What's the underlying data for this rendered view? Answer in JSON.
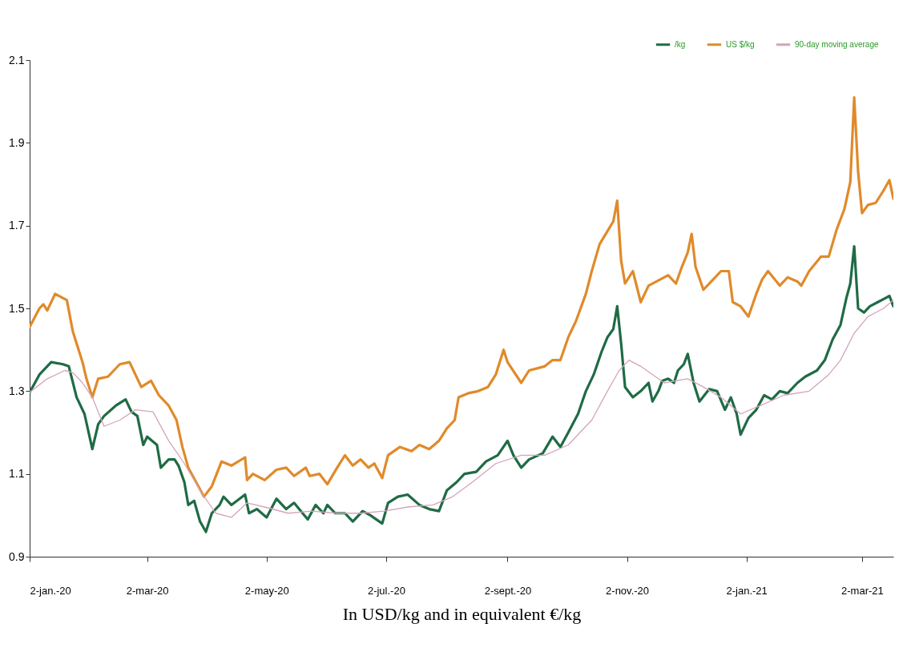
{
  "chart_data": {
    "type": "line",
    "xlabel": "In USD/kg and in equivalent €/kg",
    "xlim": [
      "2020-01-02",
      "2021-03-18"
    ],
    "xticks": [
      {
        "value": "2020-01-02",
        "label": "2-jan.-20"
      },
      {
        "value": "2020-03-02",
        "label": "2-mar-20"
      },
      {
        "value": "2020-05-02",
        "label": "2-may-20"
      },
      {
        "value": "2020-07-02",
        "label": "2-jul.-20"
      },
      {
        "value": "2020-09-02",
        "label": "2-sept.-20"
      },
      {
        "value": "2020-11-02",
        "label": "2-nov.-20"
      },
      {
        "value": "2021-01-02",
        "label": "2-jan.-21"
      },
      {
        "value": "2021-03-02",
        "label": "2-mar-21"
      }
    ],
    "ylim": [
      0.9,
      2.1
    ],
    "yticks": [
      0.9,
      1.1,
      1.3,
      1.5,
      1.7,
      1.9,
      2.1
    ],
    "grid": false,
    "legend": "top right",
    "marker": "none",
    "line_style": "solid",
    "series": [
      {
        "name": "/kg",
        "color": "#1f6b45",
        "x": [
          "2020-01-02",
          "2020-01-07",
          "2020-01-13",
          "2020-01-19",
          "2020-01-22",
          "2020-01-26",
          "2020-01-30",
          "2020-02-03",
          "2020-02-06",
          "2020-02-09",
          "2020-02-15",
          "2020-02-20",
          "2020-02-23",
          "2020-02-26",
          "2020-02-29",
          "2020-03-02",
          "2020-03-07",
          "2020-03-09",
          "2020-03-13",
          "2020-03-16",
          "2020-03-18",
          "2020-03-21",
          "2020-03-23",
          "2020-03-26",
          "2020-03-29",
          "2020-04-01",
          "2020-04-04",
          "2020-04-08",
          "2020-04-10",
          "2020-04-14",
          "2020-04-21",
          "2020-04-23",
          "2020-04-27",
          "2020-05-02",
          "2020-05-07",
          "2020-05-12",
          "2020-05-16",
          "2020-05-23",
          "2020-05-27",
          "2020-05-31",
          "2020-06-02",
          "2020-06-06",
          "2020-06-11",
          "2020-06-15",
          "2020-06-20",
          "2020-06-24",
          "2020-06-30",
          "2020-07-03",
          "2020-07-08",
          "2020-07-13",
          "2020-07-19",
          "2020-07-24",
          "2020-07-29",
          "2020-08-02",
          "2020-08-07",
          "2020-08-11",
          "2020-08-17",
          "2020-08-22",
          "2020-08-28",
          "2020-09-02",
          "2020-09-05",
          "2020-09-09",
          "2020-09-13",
          "2020-09-20",
          "2020-09-25",
          "2020-09-29",
          "2020-10-03",
          "2020-10-08",
          "2020-10-12",
          "2020-10-16",
          "2020-10-20",
          "2020-10-23",
          "2020-10-26",
          "2020-10-28",
          "2020-10-30",
          "2020-11-01",
          "2020-11-05",
          "2020-11-09",
          "2020-11-13",
          "2020-11-15",
          "2020-11-18",
          "2020-11-20",
          "2020-11-23",
          "2020-11-26",
          "2020-11-28",
          "2020-12-01",
          "2020-12-03",
          "2020-12-06",
          "2020-12-09",
          "2020-12-14",
          "2020-12-18",
          "2020-12-22",
          "2020-12-25",
          "2020-12-28",
          "2020-12-30",
          "2021-01-03",
          "2021-01-07",
          "2021-01-11",
          "2021-01-15",
          "2021-01-19",
          "2021-01-23",
          "2021-01-28",
          "2021-02-01",
          "2021-02-07",
          "2021-02-11",
          "2021-02-15",
          "2021-02-19",
          "2021-02-22",
          "2021-02-24",
          "2021-02-26",
          "2021-02-28",
          "2021-03-03",
          "2021-03-06",
          "2021-03-10",
          "2021-03-14",
          "2021-03-16",
          "2021-03-18"
        ],
        "values": [
          1.297,
          1.34,
          1.37,
          1.365,
          1.36,
          1.285,
          1.245,
          1.16,
          1.22,
          1.24,
          1.265,
          1.28,
          1.25,
          1.24,
          1.17,
          1.19,
          1.17,
          1.115,
          1.135,
          1.135,
          1.12,
          1.08,
          1.025,
          1.035,
          0.985,
          0.96,
          1.005,
          1.025,
          1.045,
          1.025,
          1.05,
          1.005,
          1.015,
          0.995,
          1.04,
          1.015,
          1.03,
          0.99,
          1.025,
          1.005,
          1.025,
          1.005,
          1.005,
          0.985,
          1.01,
          1.0,
          0.98,
          1.03,
          1.045,
          1.05,
          1.025,
          1.015,
          1.01,
          1.06,
          1.08,
          1.1,
          1.105,
          1.13,
          1.145,
          1.18,
          1.145,
          1.115,
          1.135,
          1.15,
          1.19,
          1.165,
          1.2,
          1.245,
          1.3,
          1.34,
          1.395,
          1.43,
          1.45,
          1.505,
          1.415,
          1.31,
          1.285,
          1.3,
          1.32,
          1.275,
          1.3,
          1.325,
          1.33,
          1.32,
          1.35,
          1.365,
          1.39,
          1.32,
          1.275,
          1.305,
          1.3,
          1.255,
          1.285,
          1.245,
          1.195,
          1.235,
          1.255,
          1.29,
          1.28,
          1.3,
          1.295,
          1.32,
          1.335,
          1.35,
          1.375,
          1.425,
          1.46,
          1.525,
          1.56,
          1.65,
          1.5,
          1.49,
          1.505,
          1.515,
          1.525,
          1.53,
          1.505
        ]
      },
      {
        "name": "US $/kg",
        "color": "#e08a2a",
        "x": [
          "2020-01-02",
          "2020-01-07",
          "2020-01-09",
          "2020-01-11",
          "2020-01-15",
          "2020-01-19",
          "2020-01-21",
          "2020-01-24",
          "2020-01-29",
          "2020-01-31",
          "2020-02-03",
          "2020-02-06",
          "2020-02-11",
          "2020-02-17",
          "2020-02-22",
          "2020-02-25",
          "2020-02-28",
          "2020-03-04",
          "2020-03-08",
          "2020-03-13",
          "2020-03-17",
          "2020-03-20",
          "2020-03-23",
          "2020-03-27",
          "2020-03-31",
          "2020-04-04",
          "2020-04-09",
          "2020-04-14",
          "2020-04-21",
          "2020-04-22",
          "2020-04-25",
          "2020-05-01",
          "2020-05-07",
          "2020-05-12",
          "2020-05-16",
          "2020-05-22",
          "2020-05-24",
          "2020-05-29",
          "2020-06-02",
          "2020-06-07",
          "2020-06-11",
          "2020-06-15",
          "2020-06-19",
          "2020-06-23",
          "2020-06-26",
          "2020-06-30",
          "2020-07-03",
          "2020-07-09",
          "2020-07-15",
          "2020-07-19",
          "2020-07-24",
          "2020-07-29",
          "2020-08-02",
          "2020-08-06",
          "2020-08-08",
          "2020-08-13",
          "2020-08-18",
          "2020-08-23",
          "2020-08-27",
          "2020-08-31",
          "2020-09-02",
          "2020-09-09",
          "2020-09-13",
          "2020-09-21",
          "2020-09-25",
          "2020-09-29",
          "2020-10-03",
          "2020-10-07",
          "2020-10-12",
          "2020-10-15",
          "2020-10-19",
          "2020-10-26",
          "2020-10-28",
          "2020-10-30",
          "2020-11-01",
          "2020-11-05",
          "2020-11-09",
          "2020-11-13",
          "2020-11-19",
          "2020-11-23",
          "2020-11-27",
          "2020-11-30",
          "2020-12-03",
          "2020-12-05",
          "2020-12-07",
          "2020-12-11",
          "2020-12-16",
          "2020-12-20",
          "2020-12-24",
          "2020-12-26",
          "2020-12-30",
          "2021-01-03",
          "2021-01-07",
          "2021-01-10",
          "2021-01-13",
          "2021-01-19",
          "2021-01-23",
          "2021-01-28",
          "2021-01-30",
          "2021-02-03",
          "2021-02-09",
          "2021-02-13",
          "2021-02-17",
          "2021-02-21",
          "2021-02-24",
          "2021-02-26",
          "2021-02-28",
          "2021-03-02",
          "2021-03-05",
          "2021-03-09",
          "2021-03-13",
          "2021-03-16",
          "2021-03-18"
        ],
        "values": [
          1.455,
          1.5,
          1.51,
          1.495,
          1.535,
          1.525,
          1.52,
          1.445,
          1.37,
          1.33,
          1.285,
          1.33,
          1.335,
          1.365,
          1.37,
          1.34,
          1.31,
          1.325,
          1.29,
          1.265,
          1.23,
          1.165,
          1.115,
          1.08,
          1.045,
          1.07,
          1.13,
          1.12,
          1.14,
          1.085,
          1.1,
          1.085,
          1.11,
          1.115,
          1.095,
          1.115,
          1.095,
          1.1,
          1.075,
          1.115,
          1.145,
          1.12,
          1.135,
          1.115,
          1.125,
          1.09,
          1.145,
          1.165,
          1.155,
          1.17,
          1.16,
          1.18,
          1.21,
          1.23,
          1.285,
          1.295,
          1.3,
          1.31,
          1.34,
          1.4,
          1.37,
          1.32,
          1.35,
          1.36,
          1.375,
          1.375,
          1.43,
          1.47,
          1.535,
          1.59,
          1.655,
          1.71,
          1.76,
          1.615,
          1.56,
          1.59,
          1.515,
          1.555,
          1.57,
          1.58,
          1.56,
          1.6,
          1.635,
          1.68,
          1.6,
          1.545,
          1.57,
          1.59,
          1.59,
          1.515,
          1.505,
          1.48,
          1.535,
          1.57,
          1.59,
          1.555,
          1.575,
          1.565,
          1.555,
          1.59,
          1.625,
          1.625,
          1.69,
          1.74,
          1.805,
          2.01,
          1.83,
          1.73,
          1.75,
          1.755,
          1.785,
          1.81,
          1.765
        ]
      },
      {
        "name": "90-day moving average",
        "color": "#d4a5b8",
        "x": [
          "2020-01-02",
          "2020-01-11",
          "2020-01-20",
          "2020-01-24",
          "2020-01-29",
          "2020-02-03",
          "2020-02-09",
          "2020-02-17",
          "2020-02-25",
          "2020-03-05",
          "2020-03-13",
          "2020-03-21",
          "2020-03-29",
          "2020-04-06",
          "2020-04-14",
          "2020-04-22",
          "2020-05-01",
          "2020-05-13",
          "2020-05-25",
          "2020-06-07",
          "2020-06-19",
          "2020-07-01",
          "2020-07-13",
          "2020-07-26",
          "2020-08-05",
          "2020-08-15",
          "2020-08-27",
          "2020-09-09",
          "2020-09-21",
          "2020-10-03",
          "2020-10-15",
          "2020-10-23",
          "2020-10-29",
          "2020-11-03",
          "2020-11-09",
          "2020-11-21",
          "2020-12-03",
          "2020-12-11",
          "2020-12-20",
          "2020-12-30",
          "2021-01-09",
          "2021-01-21",
          "2021-02-03",
          "2021-02-13",
          "2021-02-19",
          "2021-02-26",
          "2021-03-05",
          "2021-03-13",
          "2021-03-18"
        ],
        "values": [
          1.297,
          1.33,
          1.35,
          1.345,
          1.32,
          1.285,
          1.215,
          1.23,
          1.255,
          1.25,
          1.18,
          1.125,
          1.06,
          1.005,
          0.995,
          1.03,
          1.02,
          1.005,
          1.01,
          1.005,
          1.005,
          1.01,
          1.02,
          1.025,
          1.045,
          1.08,
          1.125,
          1.145,
          1.145,
          1.17,
          1.23,
          1.3,
          1.35,
          1.375,
          1.36,
          1.32,
          1.33,
          1.31,
          1.285,
          1.245,
          1.265,
          1.29,
          1.3,
          1.34,
          1.375,
          1.44,
          1.48,
          1.5,
          1.52
        ]
      }
    ]
  }
}
